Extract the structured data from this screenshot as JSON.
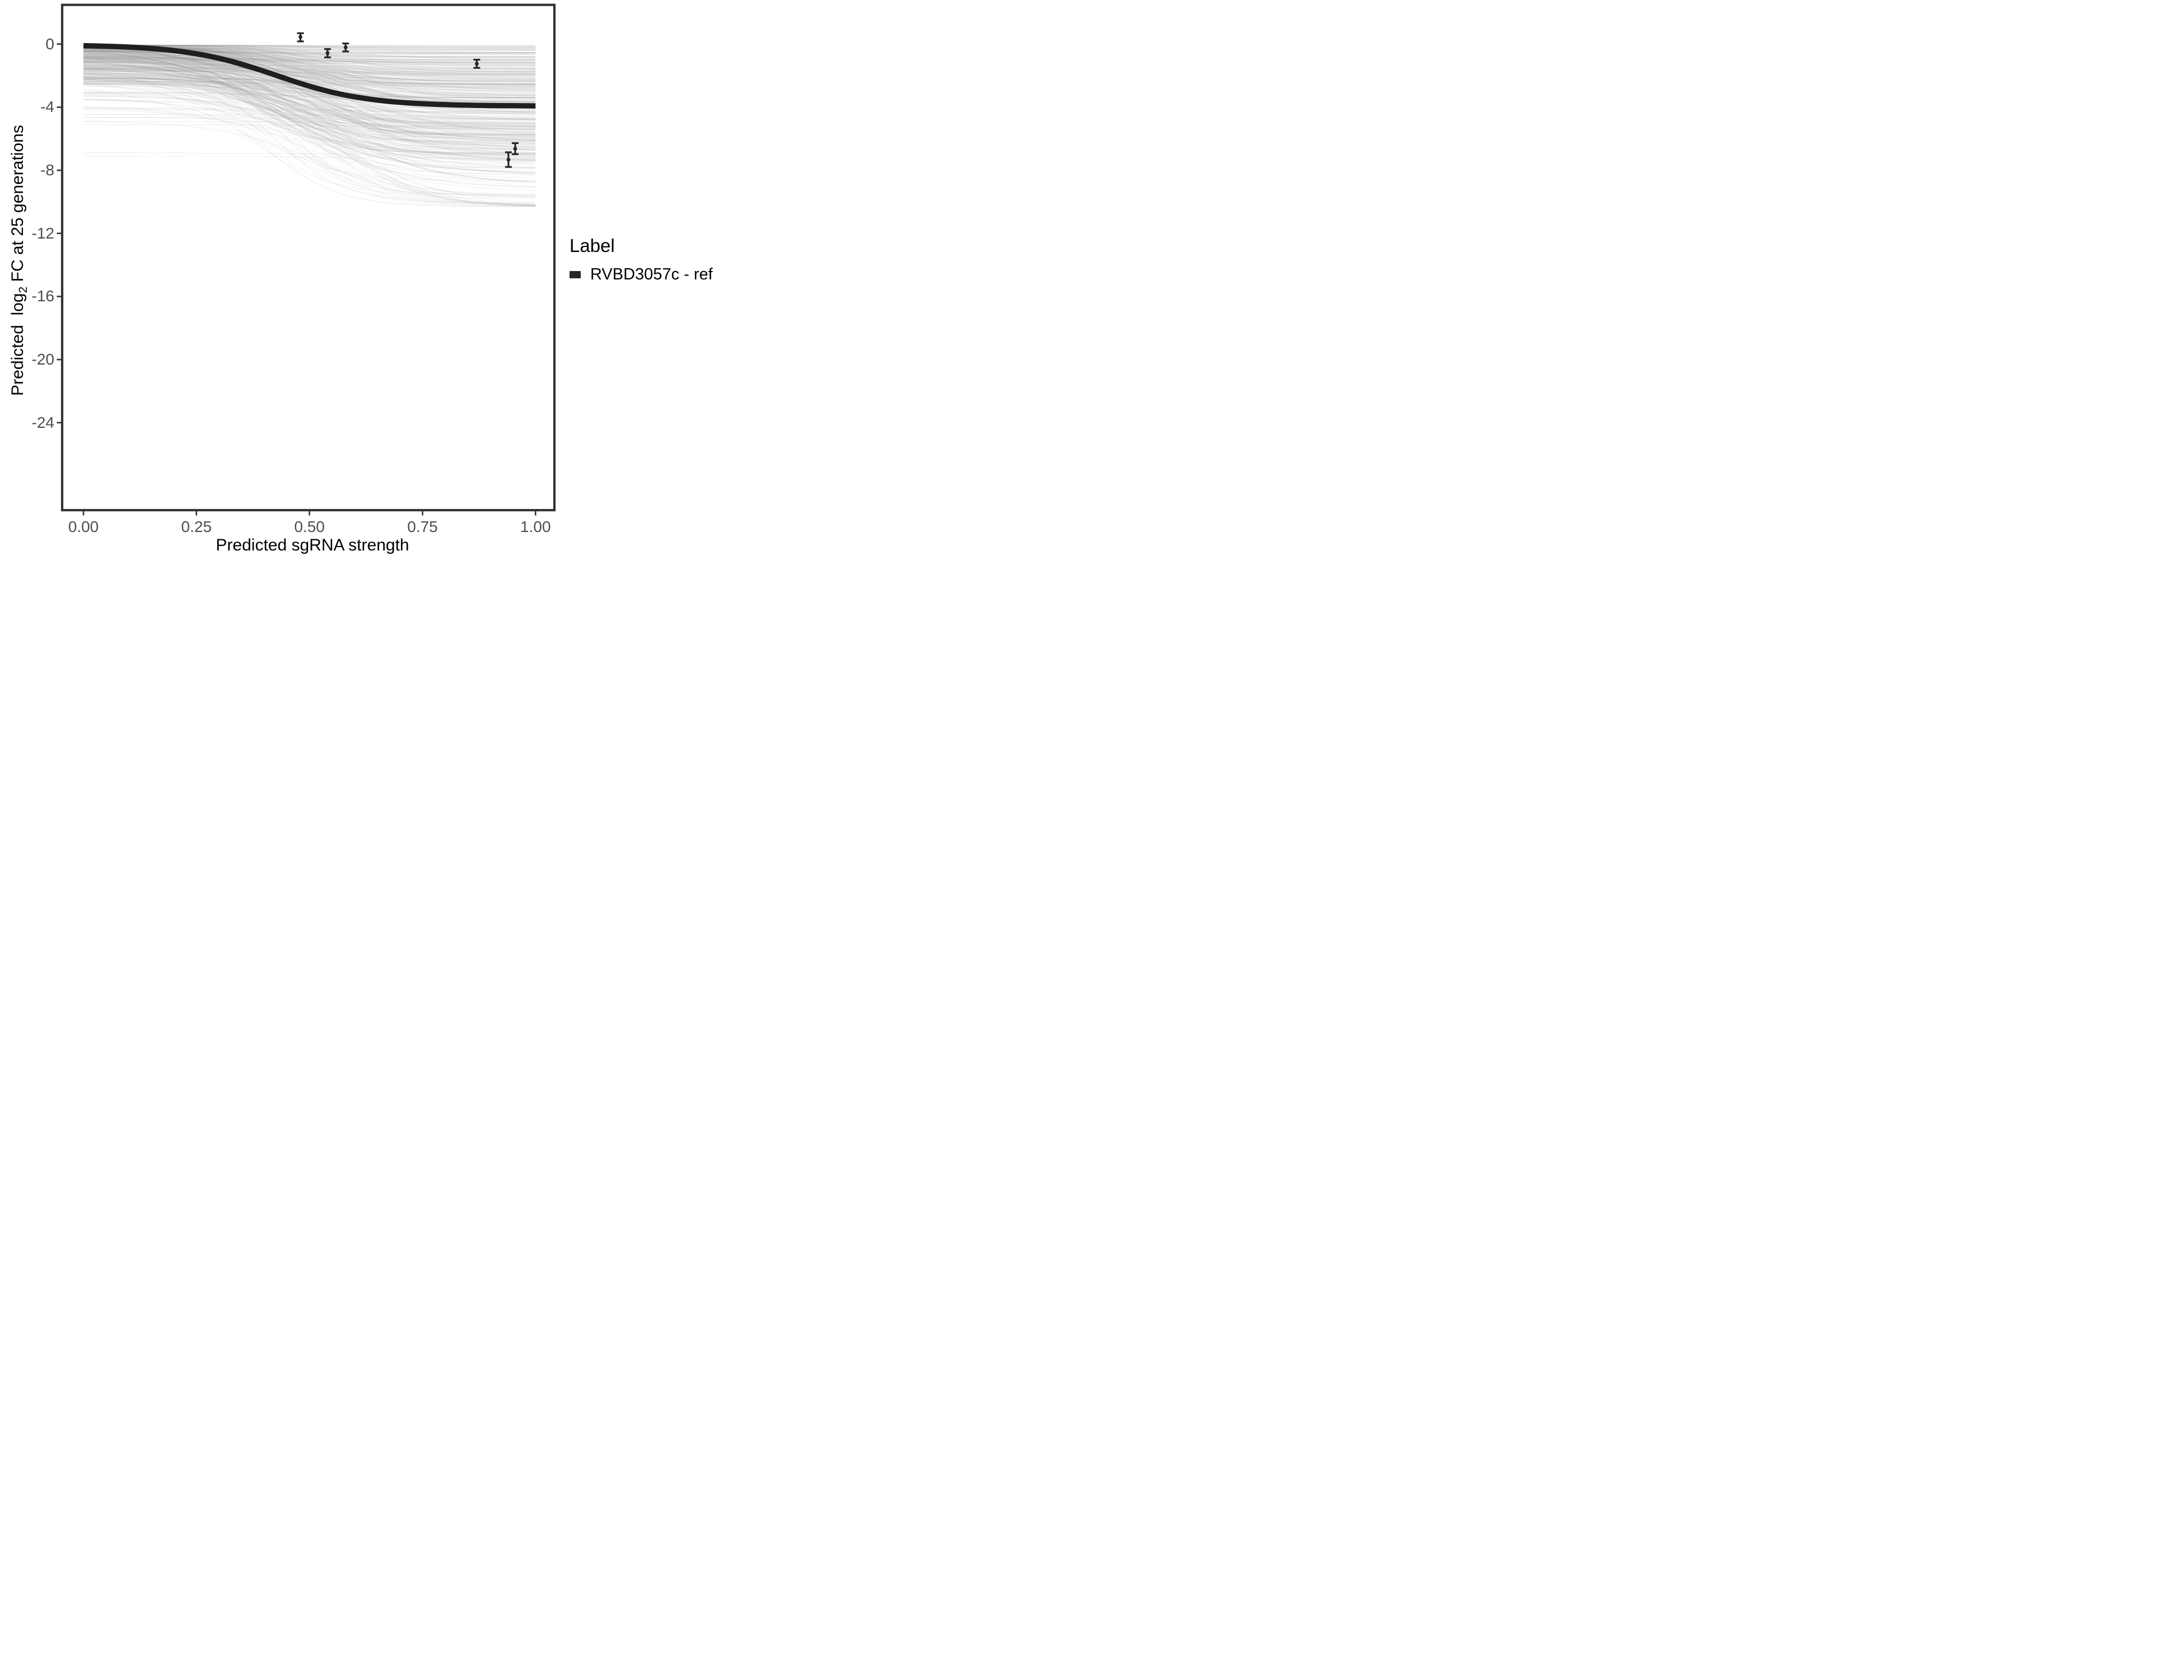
{
  "chart_data": {
    "type": "line",
    "title": "",
    "x_axis": {
      "label": "Predicted sgRNA strength",
      "tick_labels": [
        "0.00",
        "0.25",
        "0.50",
        "0.75",
        "1.00"
      ],
      "tick_values": [
        0,
        0.25,
        0.5,
        0.75,
        1.0
      ],
      "range": [
        -0.05,
        1.04
      ],
      "grid": false
    },
    "y_axis": {
      "label_full": "Predicted log2 FC at 25 generations",
      "label_prefix": "Predicted  log",
      "label_subscript": "2",
      "label_suffix": " FC at 25 generations",
      "tick_labels": [
        "0",
        "-4",
        "-8",
        "-12",
        "-16",
        "-20",
        "-24"
      ],
      "tick_values": [
        0,
        -4,
        -8,
        -12,
        -16,
        -20,
        -24
      ],
      "range": [
        -29.5,
        2.5
      ],
      "grid": false
    },
    "legend": {
      "title": "Label",
      "position": "right",
      "entries": [
        {
          "label": "RVBD3057c - ref",
          "swatch_color": "#262626"
        }
      ]
    },
    "reference_curve": {
      "label": "RVBD3057c - ref",
      "color": "#1f1f1f",
      "shape": "logistic",
      "start": -0.05,
      "drop": 3.88,
      "midpoint_x": 0.427,
      "steepness": 10,
      "plateau": -3.93,
      "points": [
        {
          "x": 0.0,
          "y": -0.09
        },
        {
          "x": 0.1,
          "y": -0.18
        },
        {
          "x": 0.2,
          "y": -0.4
        },
        {
          "x": 0.3,
          "y": -0.89
        },
        {
          "x": 0.4,
          "y": -1.72
        },
        {
          "x": 0.5,
          "y": -2.67
        },
        {
          "x": 0.6,
          "y": -3.35
        },
        {
          "x": 0.7,
          "y": -3.69
        },
        {
          "x": 0.8,
          "y": -3.84
        },
        {
          "x": 0.9,
          "y": -3.9
        },
        {
          "x": 1.0,
          "y": -3.92
        }
      ]
    },
    "error_points": [
      {
        "x": 0.48,
        "y": 0.45,
        "ymin": 0.17,
        "ymax": 0.69
      },
      {
        "x": 0.54,
        "y": -0.57,
        "ymin": -0.84,
        "ymax": -0.32
      },
      {
        "x": 0.58,
        "y": -0.21,
        "ymin": -0.47,
        "ymax": 0.04
      },
      {
        "x": 0.87,
        "y": -1.25,
        "ymin": -1.51,
        "ymax": -0.99
      },
      {
        "x": 0.94,
        "y": -7.33,
        "ymin": -7.79,
        "ymax": -6.86
      },
      {
        "x": 0.955,
        "y": -6.64,
        "ymin": -6.98,
        "ymax": -6.28
      }
    ],
    "background_ensemble": {
      "description": "Dense bundle of individual-guide predicted sigmoid curves in light gray; start values 0 to -5, end values 0 to -10.3, sigmoid midpoints 0.36-0.58",
      "count": 450,
      "seed": 42,
      "color": "#8f8f8f",
      "opacity_range": [
        0.05,
        0.14
      ],
      "start_range": [
        -0.06,
        -5.2
      ],
      "end_range": [
        -0.06,
        -10.3
      ],
      "midpoint_range": [
        0.36,
        0.58
      ],
      "steepness_range": [
        6.5,
        14
      ],
      "flat_line_levels": [
        -4.15,
        -4.45,
        -4.65,
        -4.9,
        -5.1,
        -6.9,
        -7.1
      ]
    },
    "colors": {
      "panel_border": "#333333",
      "tick_label": "#4d4d4d",
      "axis_title": "#000000",
      "point": "#262626"
    }
  }
}
